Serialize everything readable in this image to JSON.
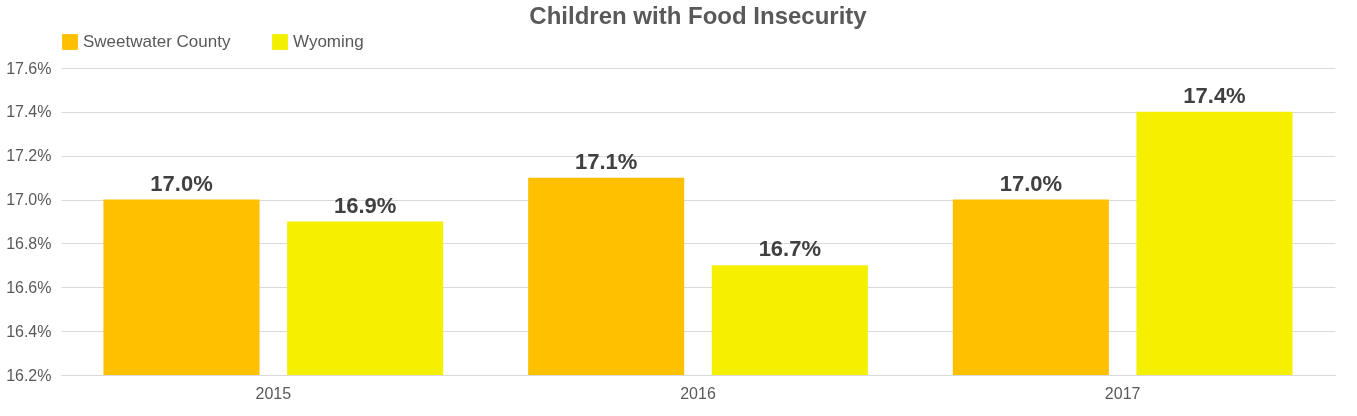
{
  "chart_data": {
    "type": "bar",
    "title": "Children with Food Insecurity",
    "categories": [
      "2015",
      "2016",
      "2017"
    ],
    "series": [
      {
        "name": "Sweetwater County",
        "color": "#ffc000",
        "values": [
          17.0,
          17.1,
          17.0
        ],
        "value_labels": [
          "17.0%",
          "17.1%",
          "17.0%"
        ]
      },
      {
        "name": "Wyoming",
        "color": "#f5ef00",
        "values": [
          16.9,
          16.7,
          17.4
        ],
        "value_labels": [
          "16.9%",
          "16.7%",
          "17.4%"
        ]
      }
    ],
    "ylim": [
      16.2,
      17.6
    ],
    "yticks": [
      {
        "value": 16.2,
        "label": "16.2%"
      },
      {
        "value": 16.4,
        "label": "16.4%"
      },
      {
        "value": 16.6,
        "label": "16.6%"
      },
      {
        "value": 16.8,
        "label": "16.8%"
      },
      {
        "value": 17.0,
        "label": "17.0%"
      },
      {
        "value": 17.2,
        "label": "17.2%"
      },
      {
        "value": 17.4,
        "label": "17.4%"
      },
      {
        "value": 17.6,
        "label": "17.6%"
      }
    ],
    "grid": "y",
    "legend": "top"
  }
}
